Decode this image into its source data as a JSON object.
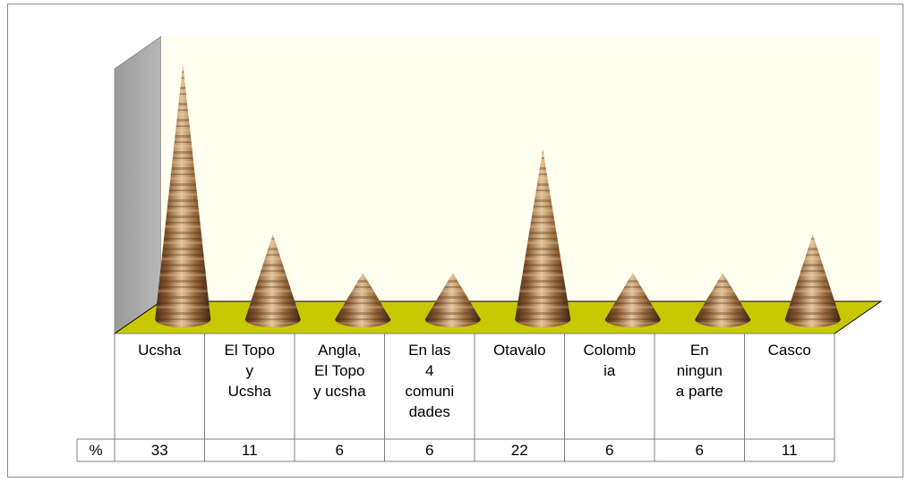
{
  "chart_data": {
    "type": "bar",
    "mark": "cone",
    "categories": [
      [
        "Ucsha"
      ],
      [
        "El Topo",
        "y",
        "Ucsha"
      ],
      [
        "Angla,",
        "El Topo",
        "y ucsha"
      ],
      [
        "En las",
        "4",
        "comuni",
        "dades"
      ],
      [
        "Otavalo"
      ],
      [
        "Colomb",
        "ia"
      ],
      [
        "En",
        "ningun",
        "a parte"
      ],
      [
        "Casco"
      ]
    ],
    "series": [
      {
        "name": "%",
        "values": [
          33,
          11,
          6,
          6,
          22,
          6,
          6,
          11
        ]
      }
    ],
    "title": "",
    "xlabel": "",
    "ylabel": "",
    "ylim": [
      0,
      33
    ],
    "grid": false,
    "legend": "none",
    "data_table": true,
    "colors": {
      "floor": "#c8c800",
      "back_wall": "#fffff0",
      "side_wall": "#a6a6a6",
      "cone_dark": "#6e4424",
      "cone_light": "#d8b48a"
    }
  }
}
